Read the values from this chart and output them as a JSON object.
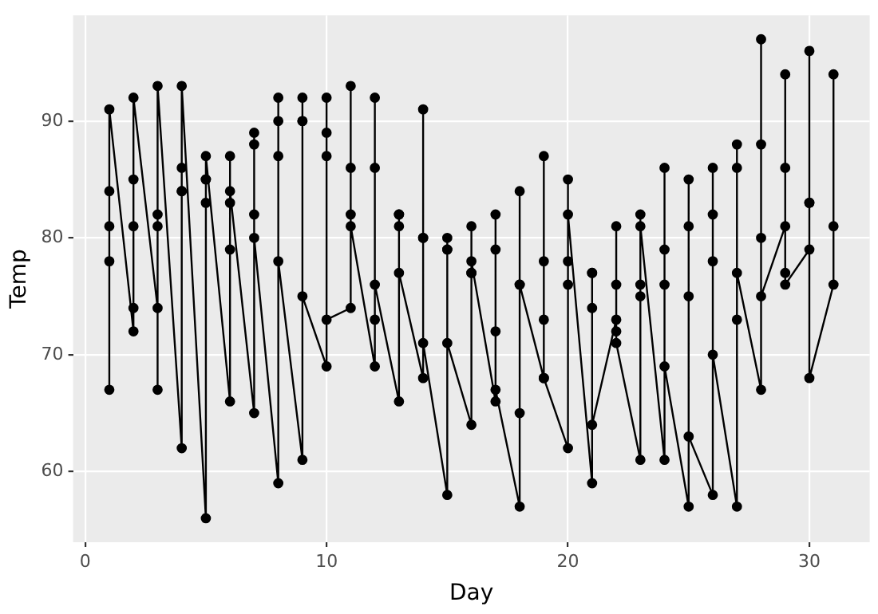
{
  "chart_data": {
    "type": "line",
    "xlabel": "Day",
    "ylabel": "Temp",
    "series": [
      {
        "color": "#000000",
        "x": [
          1,
          1,
          1,
          1,
          1,
          2,
          2,
          2,
          2,
          2,
          3,
          3,
          3,
          3,
          3,
          4,
          4,
          4,
          4,
          4,
          5,
          5,
          5,
          5,
          5,
          6,
          6,
          6,
          6,
          6,
          7,
          7,
          7,
          7,
          7,
          8,
          8,
          8,
          8,
          8,
          9,
          9,
          9,
          9,
          9,
          10,
          10,
          10,
          10,
          10,
          11,
          11,
          11,
          11,
          11,
          12,
          12,
          12,
          12,
          12,
          13,
          13,
          13,
          13,
          13,
          14,
          14,
          14,
          14,
          14,
          15,
          15,
          15,
          15,
          15,
          16,
          16,
          16,
          16,
          16,
          17,
          17,
          17,
          17,
          17,
          18,
          18,
          18,
          18,
          18,
          19,
          19,
          19,
          19,
          19,
          20,
          20,
          20,
          20,
          20,
          21,
          21,
          21,
          21,
          21,
          22,
          22,
          22,
          22,
          22,
          23,
          23,
          23,
          23,
          23,
          24,
          24,
          24,
          24,
          24,
          25,
          25,
          25,
          25,
          25,
          26,
          26,
          26,
          26,
          26,
          27,
          27,
          27,
          27,
          27,
          28,
          28,
          28,
          28,
          28,
          29,
          29,
          29,
          29,
          29,
          30,
          30,
          30,
          30,
          30,
          31,
          31,
          31
        ],
        "values": [
          67,
          78,
          84,
          81,
          91,
          72,
          74,
          85,
          81,
          92,
          74,
          67,
          81,
          82,
          93,
          62,
          84,
          84,
          86,
          93,
          56,
          85,
          83,
          85,
          87,
          66,
          79,
          83,
          87,
          84,
          65,
          82,
          88,
          89,
          80,
          59,
          87,
          92,
          90,
          78,
          61,
          90,
          92,
          90,
          75,
          69,
          87,
          89,
          92,
          73,
          74,
          93,
          82,
          86,
          81,
          69,
          92,
          73,
          86,
          76,
          66,
          82,
          81,
          82,
          77,
          68,
          80,
          91,
          80,
          71,
          58,
          79,
          80,
          79,
          71,
          64,
          77,
          81,
          77,
          78,
          66,
          72,
          82,
          79,
          67,
          57,
          65,
          84,
          76,
          76,
          68,
          73,
          87,
          78,
          68,
          62,
          76,
          85,
          78,
          82,
          59,
          77,
          74,
          77,
          64,
          73,
          76,
          81,
          72,
          71,
          61,
          76,
          82,
          75,
          81,
          61,
          76,
          86,
          79,
          69,
          57,
          75,
          85,
          81,
          63,
          58,
          78,
          82,
          86,
          70,
          57,
          73,
          86,
          88,
          77,
          67,
          80,
          88,
          97,
          75,
          81,
          77,
          86,
          94,
          76,
          79,
          83,
          83,
          96,
          68,
          76,
          81,
          94
        ]
      }
    ],
    "xlim": [
      -0.5,
      32.5
    ],
    "xticks": [
      0,
      10,
      20,
      30
    ],
    "ylim": [
      53.95,
      99.05
    ],
    "yticks": [
      60,
      70,
      80,
      90
    ],
    "grid": true,
    "marker": "circle",
    "line_style": "solid"
  }
}
